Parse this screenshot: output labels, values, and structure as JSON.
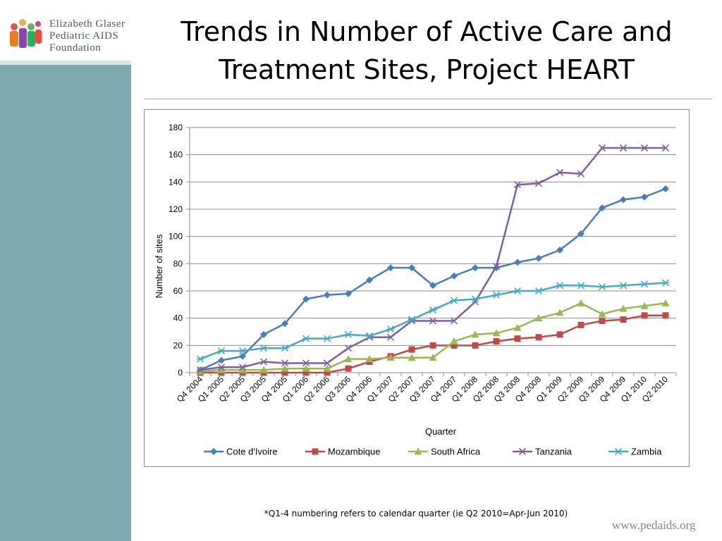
{
  "header": {
    "logo_lines": [
      "Elizabeth Glaser",
      "Pediatric AIDS",
      "Foundation"
    ],
    "title_line1": "Trends in Number of Active Care and",
    "title_line2": "Treatment Sites, Project HEART"
  },
  "footer": {
    "footnote": "*Q1-4 numbering refers to calendar quarter (ie Q2 2010=Apr-Jun 2010)",
    "url": "www.pedaids.org"
  },
  "chart_data": {
    "type": "line",
    "title": "",
    "xlabel": "Quarter",
    "ylabel": "Number of sites",
    "ylim": [
      0,
      180
    ],
    "yticks": [
      0,
      20,
      40,
      60,
      80,
      100,
      120,
      140,
      160,
      180
    ],
    "grid": true,
    "legend_position": "bottom",
    "categories": [
      "Q4 2004",
      "Q1 2005",
      "Q2 2005",
      "Q3 2005",
      "Q4 2005",
      "Q1 2006",
      "Q2 2006",
      "Q3 2006",
      "Q4 2006",
      "Q1 2007",
      "Q2 2007",
      "Q3 2007",
      "Q4 2007",
      "Q1 2008",
      "Q2 2008",
      "Q3 2008",
      "Q4 2008",
      "Q1 2009",
      "Q2 2009",
      "Q3 2009",
      "Q4 2009",
      "Q1 2010",
      "Q2 2010"
    ],
    "series": [
      {
        "name": "Cote d'Ivoire",
        "color": "#4a7ebb",
        "marker": "diamond",
        "values": [
          2,
          9,
          12,
          28,
          36,
          54,
          57,
          58,
          68,
          77,
          77,
          64,
          71,
          77,
          77,
          81,
          84,
          90,
          102,
          121,
          127,
          129,
          135
        ]
      },
      {
        "name": "Mozambique",
        "color": "#be4b48",
        "marker": "square",
        "values": [
          0,
          0,
          0,
          0,
          0,
          0,
          0,
          3,
          8,
          12,
          17,
          20,
          20,
          20,
          23,
          25,
          26,
          28,
          35,
          38,
          39,
          42,
          42
        ]
      },
      {
        "name": "South Africa",
        "color": "#98b954",
        "marker": "triangle",
        "values": [
          1,
          2,
          2,
          2,
          3,
          3,
          3,
          10,
          10,
          11,
          11,
          11,
          23,
          28,
          29,
          33,
          40,
          44,
          51,
          43,
          47,
          49,
          51
        ]
      },
      {
        "name": "Tanzania",
        "color": "#7d60a0",
        "marker": "x",
        "values": [
          2,
          4,
          4,
          8,
          7,
          7,
          7,
          18,
          26,
          26,
          38,
          38,
          38,
          52,
          78,
          138,
          139,
          147,
          146,
          165,
          165,
          165,
          165
        ]
      },
      {
        "name": "Zambia",
        "color": "#46aac5",
        "marker": "star",
        "values": [
          10,
          16,
          16,
          18,
          18,
          25,
          25,
          28,
          27,
          32,
          39,
          46,
          53,
          54,
          57,
          60,
          60,
          64,
          64,
          63,
          64,
          65,
          66
        ]
      }
    ]
  }
}
